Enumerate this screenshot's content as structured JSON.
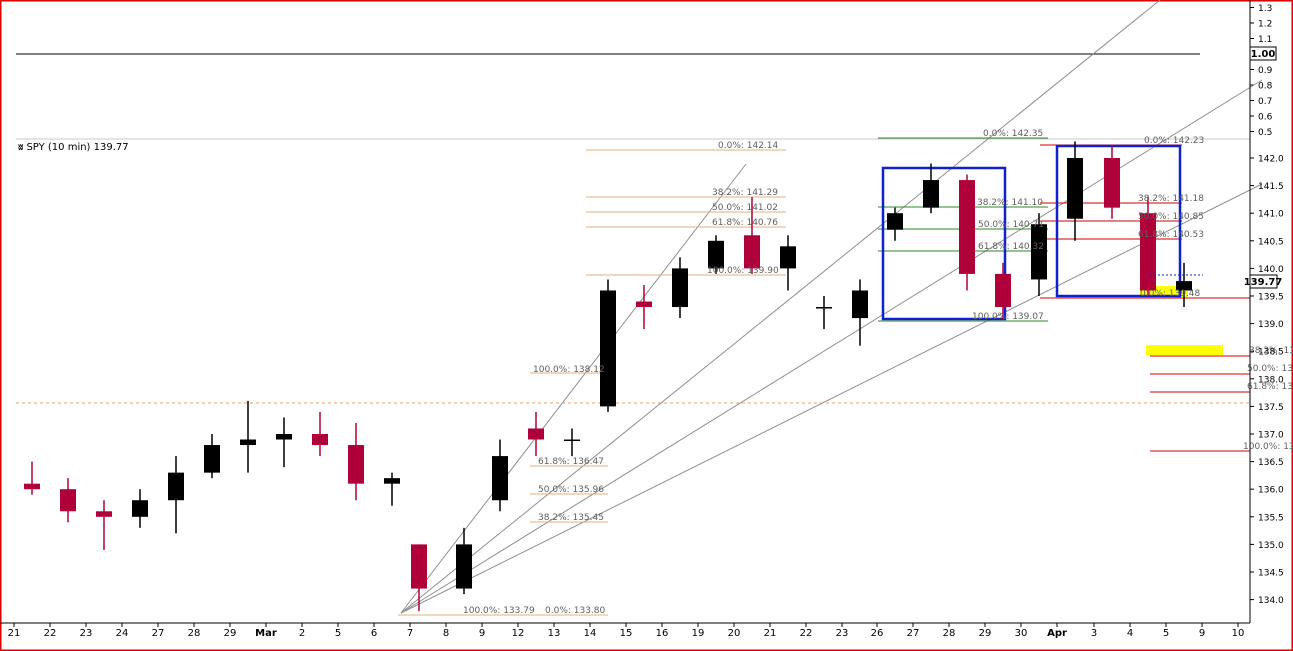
{
  "colors": {
    "frame": "#e00000",
    "candle_up": "#000000",
    "candle_down": "#b0003a",
    "fib_tan": "#e0b080",
    "fib_green": "#2a8a2a",
    "fib_red": "#d00000",
    "box_blue": "#1020d0",
    "fan_gray": "#909090",
    "highlight": "#ffff00",
    "price_label_bg": "#ffffff"
  },
  "chart_data": [
    {
      "type": "line",
      "panel": "indicator",
      "right_axis_ticks": [
        "1.3",
        "1.2",
        "1.1",
        "1.00",
        "0.9",
        "0.8",
        "0.7",
        "0.6",
        "0.5"
      ],
      "current_value_label": "1.00",
      "series": [
        {
          "values": [
            1.0,
            1.0
          ]
        }
      ]
    },
    {
      "type": "candlestick",
      "title": "SPY (10 min) 139.77",
      "current_price_label": "139.77",
      "y_range": [
        133.7,
        142.6
      ],
      "right_axis_ticks": [
        "142.0",
        "141.5",
        "141.0",
        "140.5",
        "140.0",
        "139.5",
        "139.0",
        "138.5",
        "138.0",
        "137.5",
        "137.0",
        "136.5",
        "136.0",
        "135.5",
        "135.0",
        "134.5",
        "134.0"
      ],
      "x_ticks": [
        "21",
        "22",
        "23",
        "24",
        "27",
        "28",
        "29",
        "Mar",
        "2",
        "5",
        "6",
        "7",
        "8",
        "9",
        "12",
        "13",
        "14",
        "15",
        "16",
        "19",
        "20",
        "21",
        "22",
        "23",
        "26",
        "27",
        "28",
        "29",
        "30",
        "Apr",
        "3",
        "4",
        "5",
        "9",
        "10"
      ],
      "sessions": [
        {
          "day": "21",
          "o": 136.1,
          "h": 136.5,
          "l": 135.9,
          "c": 136.0
        },
        {
          "day": "22",
          "o": 136.0,
          "h": 136.2,
          "l": 135.4,
          "c": 135.6
        },
        {
          "day": "23",
          "o": 135.6,
          "h": 135.8,
          "l": 134.9,
          "c": 135.5
        },
        {
          "day": "24",
          "o": 135.5,
          "h": 136.0,
          "l": 135.3,
          "c": 135.8
        },
        {
          "day": "27",
          "o": 135.8,
          "h": 136.6,
          "l": 135.2,
          "c": 136.3
        },
        {
          "day": "28",
          "o": 136.3,
          "h": 137.0,
          "l": 136.2,
          "c": 136.8
        },
        {
          "day": "29",
          "o": 136.8,
          "h": 137.6,
          "l": 136.3,
          "c": 136.9
        },
        {
          "day": "Mar",
          "o": 136.9,
          "h": 137.3,
          "l": 136.4,
          "c": 137.0
        },
        {
          "day": "2",
          "o": 137.0,
          "h": 137.4,
          "l": 136.6,
          "c": 136.8
        },
        {
          "day": "5",
          "o": 136.8,
          "h": 137.2,
          "l": 135.8,
          "c": 136.1
        },
        {
          "day": "6",
          "o": 136.1,
          "h": 136.3,
          "l": 135.7,
          "c": 136.2
        },
        {
          "day": "7",
          "o": 135.0,
          "h": 135.0,
          "l": 133.79,
          "c": 134.2
        },
        {
          "day": "8",
          "o": 134.2,
          "h": 135.3,
          "l": 134.1,
          "c": 135.0
        },
        {
          "day": "9",
          "o": 135.8,
          "h": 136.9,
          "l": 135.6,
          "c": 136.6
        },
        {
          "day": "12",
          "o": 137.1,
          "h": 137.4,
          "l": 136.6,
          "c": 136.9
        },
        {
          "day": "13",
          "o": 136.9,
          "h": 137.1,
          "l": 136.6,
          "c": 136.9
        },
        {
          "day": "14",
          "o": 137.5,
          "h": 139.8,
          "l": 137.4,
          "c": 139.6
        },
        {
          "day": "15",
          "o": 139.4,
          "h": 139.7,
          "l": 138.9,
          "c": 139.3
        },
        {
          "day": "16",
          "o": 139.3,
          "h": 140.2,
          "l": 139.1,
          "c": 140.0
        },
        {
          "day": "19",
          "o": 140.0,
          "h": 140.6,
          "l": 139.9,
          "c": 140.5
        },
        {
          "day": "20",
          "o": 140.6,
          "h": 141.29,
          "l": 139.9,
          "c": 140.0
        },
        {
          "day": "21",
          "o": 140.0,
          "h": 140.6,
          "l": 139.6,
          "c": 140.4
        },
        {
          "day": "22",
          "o": 139.3,
          "h": 139.5,
          "l": 138.9,
          "c": 139.3
        },
        {
          "day": "23",
          "o": 139.1,
          "h": 139.8,
          "l": 138.6,
          "c": 139.6
        },
        {
          "day": "26",
          "o": 140.7,
          "h": 141.1,
          "l": 140.5,
          "c": 141.0
        },
        {
          "day": "27",
          "o": 141.1,
          "h": 141.9,
          "l": 141.0,
          "c": 141.6
        },
        {
          "day": "28",
          "o": 141.6,
          "h": 141.7,
          "l": 139.6,
          "c": 139.9
        },
        {
          "day": "29",
          "o": 139.9,
          "h": 140.1,
          "l": 139.07,
          "c": 139.3
        },
        {
          "day": "30",
          "o": 139.8,
          "h": 141.0,
          "l": 139.5,
          "c": 140.8
        },
        {
          "day": "Apr",
          "o": 140.9,
          "h": 142.3,
          "l": 140.5,
          "c": 142.0
        },
        {
          "day": "3",
          "o": 142.0,
          "h": 142.23,
          "l": 140.9,
          "c": 141.1
        },
        {
          "day": "4",
          "o": 141.0,
          "h": 141.3,
          "l": 139.5,
          "c": 139.6
        },
        {
          "day": "5",
          "o": 139.6,
          "h": 140.1,
          "l": 139.3,
          "c": 139.77
        }
      ]
    }
  ],
  "fib_labels": [
    "0.0%: 142.14",
    "38.2%: 141.29",
    "50.0%: 141.02",
    "61.8%: 140.76",
    "100.0%: 139.90",
    "100.0%: 138.12",
    "61.8%: 136.47",
    "50.0%: 135.96",
    "38.2%: 135.45",
    "100.0%: 133.79",
    "0.0%: 133.80",
    "0.0%: 142.35",
    "38.2%: 141.10",
    "50.0%: 140.71",
    "61.8%: 140.32",
    "100.0%: 139.07",
    "0.0%: 142.23",
    "38.2%: 141.18",
    "50.0%: 140.85",
    "61.8%: 140.53",
    "0.0%: 139.48",
    "38.2%: 13",
    "50.0%: 13",
    "61.8%: 13",
    "100.0%: 13"
  ]
}
